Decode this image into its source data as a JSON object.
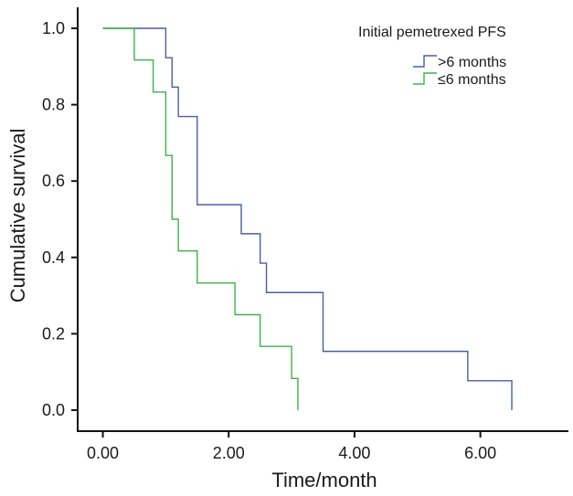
{
  "chart_data": {
    "type": "line",
    "subtype": "kaplan-meier-step",
    "title": "",
    "xlabel": "Time/month",
    "ylabel": "Cumulative survival",
    "xlim": [
      -0.4,
      7.4
    ],
    "ylim": [
      0.0,
      1.0
    ],
    "xticks": [
      0,
      2,
      4,
      6
    ],
    "xtick_labels": [
      "0.00",
      "2.00",
      "4.00",
      "6.00"
    ],
    "yticks": [
      0.0,
      0.2,
      0.4,
      0.6,
      0.8,
      1.0
    ],
    "ytick_labels": [
      "0.0",
      "0.2",
      "0.4",
      "0.6",
      "0.8",
      "1.0"
    ],
    "grid": false,
    "legend": {
      "title": "Initial pemetrexed PFS",
      "position": "top-right"
    },
    "series": [
      {
        "name": ">6 months",
        "color": "#4a5fa0",
        "points": [
          {
            "x": 0.0,
            "y": 1.0
          },
          {
            "x": 1.0,
            "y": 0.923
          },
          {
            "x": 1.1,
            "y": 0.846
          },
          {
            "x": 1.2,
            "y": 0.769
          },
          {
            "x": 1.5,
            "y": 0.538
          },
          {
            "x": 2.2,
            "y": 0.462
          },
          {
            "x": 2.5,
            "y": 0.385
          },
          {
            "x": 2.6,
            "y": 0.308
          },
          {
            "x": 3.5,
            "y": 0.154
          },
          {
            "x": 5.8,
            "y": 0.077
          },
          {
            "x": 6.5,
            "y": 0.0
          }
        ]
      },
      {
        "name": "≤6 months",
        "color": "#3db34a",
        "points": [
          {
            "x": 0.0,
            "y": 1.0
          },
          {
            "x": 0.5,
            "y": 0.917
          },
          {
            "x": 0.8,
            "y": 0.833
          },
          {
            "x": 1.0,
            "y": 0.667
          },
          {
            "x": 1.1,
            "y": 0.5
          },
          {
            "x": 1.2,
            "y": 0.417
          },
          {
            "x": 1.5,
            "y": 0.333
          },
          {
            "x": 2.1,
            "y": 0.25
          },
          {
            "x": 2.5,
            "y": 0.167
          },
          {
            "x": 3.0,
            "y": 0.083
          },
          {
            "x": 3.1,
            "y": 0.0
          }
        ]
      }
    ]
  }
}
